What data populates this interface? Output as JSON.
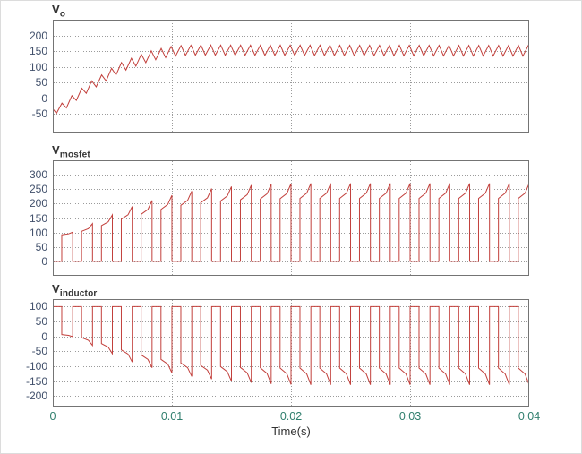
{
  "figure": {
    "xlabel": "Time(s)",
    "xlim": [
      0,
      0.04
    ],
    "xticks": [
      {
        "value": 0,
        "label": "0"
      },
      {
        "value": 0.01,
        "label": "0.01"
      },
      {
        "value": 0.02,
        "label": "0.02"
      },
      {
        "value": 0.03,
        "label": "0.03"
      },
      {
        "value": 0.04,
        "label": "0.04"
      }
    ]
  },
  "style": {
    "line_color": "#c2403c",
    "grid_color": "#9b9b9b",
    "box_color": "#747474",
    "ytick_color": "#41506b",
    "xtick_color": "#2f7e6d",
    "title_color": "#333333",
    "background": "#ffffff"
  },
  "chart_data": [
    {
      "type": "line",
      "title_main": "V",
      "title_sub": "o",
      "xlim": [
        0,
        0.04
      ],
      "ylim": [
        -110,
        250
      ],
      "yticks": [
        200,
        150,
        100,
        50,
        0,
        -50
      ],
      "grid": true,
      "description": "Output voltage: sawtooth ripple rising from about -50 V to a steady ripple of roughly 135-168 V reached near t=0.012 s",
      "waveform": {
        "kind": "triangle_ripple",
        "ripple_period_s": 0.0008333,
        "fall_fraction": 0.45,
        "phase_fraction": 0.08,
        "midline_keypoints": [
          [
            0,
            -42
          ],
          [
            0.0009,
            -26
          ],
          [
            0.0017,
            -2
          ],
          [
            0.0025,
            20
          ],
          [
            0.0033,
            42
          ],
          [
            0.0042,
            62
          ],
          [
            0.005,
            82
          ],
          [
            0.0058,
            99
          ],
          [
            0.0067,
            113
          ],
          [
            0.0075,
            125
          ],
          [
            0.0083,
            135
          ],
          [
            0.0092,
            143
          ],
          [
            0.01,
            149
          ],
          [
            0.011,
            152
          ],
          [
            0.012,
            153
          ],
          [
            0.04,
            151
          ]
        ],
        "amplitude_keypoints": [
          [
            0,
            12
          ],
          [
            0.004,
            14
          ],
          [
            0.008,
            16
          ],
          [
            0.04,
            17
          ]
        ]
      }
    },
    {
      "type": "line",
      "title_main": "V",
      "title_sub": "mosfet",
      "xlim": [
        0,
        0.04
      ],
      "ylim": [
        -50,
        350
      ],
      "yticks": [
        300,
        250,
        200,
        150,
        100,
        50,
        0
      ],
      "grid": true,
      "description": "MOSFET voltage: 0 V while the switch is on, rising pulses while off; pulse amplitude grows from about 100 V to a steady 218-270 V ramp",
      "waveform": {
        "kind": "switched_pulse",
        "period_s": 0.0016667,
        "duty_on": 0.45,
        "on_value": 0,
        "ramp_mid_time_frac": 0.62,
        "ramp_mid_value_frac": 0.35,
        "cycles": [
          [
            92,
            101
          ],
          [
            104,
            131
          ],
          [
            124,
            161
          ],
          [
            146,
            190
          ],
          [
            163,
            211
          ],
          [
            180,
            229
          ],
          [
            194,
            243
          ],
          [
            203,
            252
          ],
          [
            209,
            259
          ],
          [
            213,
            264
          ],
          [
            216,
            267
          ],
          [
            217,
            269
          ],
          [
            218,
            270
          ],
          [
            218,
            270
          ],
          [
            218,
            270
          ],
          [
            218,
            270
          ],
          [
            218,
            270
          ],
          [
            218,
            270
          ],
          [
            218,
            270
          ],
          [
            218,
            270
          ],
          [
            218,
            270
          ],
          [
            218,
            270
          ],
          [
            218,
            270
          ],
          [
            218,
            270
          ]
        ]
      }
    },
    {
      "type": "line",
      "title_main": "V",
      "title_sub": "inductor",
      "xlim": [
        0,
        0.04
      ],
      "ylim": [
        -235,
        125
      ],
      "yticks": [
        100,
        50,
        0,
        -50,
        -100,
        -150,
        -200
      ],
      "grid": true,
      "description": "Inductor voltage: +100 V while the switch is on, negative sloping segments while off, deepening from about 0 V to a steady -106 to -162 V",
      "waveform": {
        "kind": "switched_pulse",
        "period_s": 0.0016667,
        "duty_on": 0.45,
        "on_value": 100,
        "ramp_mid_time_frac": 0.62,
        "ramp_mid_value_frac": 0.35,
        "cycles": [
          [
            6,
            -1
          ],
          [
            -4,
            -30
          ],
          [
            -24,
            -58
          ],
          [
            -45,
            -86
          ],
          [
            -62,
            -105
          ],
          [
            -77,
            -122
          ],
          [
            -89,
            -134
          ],
          [
            -97,
            -143
          ],
          [
            -101,
            -150
          ],
          [
            -104,
            -155
          ],
          [
            -105,
            -159
          ],
          [
            -106,
            -161
          ],
          [
            -106,
            -162
          ],
          [
            -106,
            -162
          ],
          [
            -106,
            -162
          ],
          [
            -106,
            -162
          ],
          [
            -106,
            -162
          ],
          [
            -106,
            -162
          ],
          [
            -106,
            -162
          ],
          [
            -106,
            -162
          ],
          [
            -106,
            -162
          ],
          [
            -106,
            -162
          ],
          [
            -106,
            -162
          ],
          [
            -106,
            -162
          ]
        ]
      }
    }
  ]
}
